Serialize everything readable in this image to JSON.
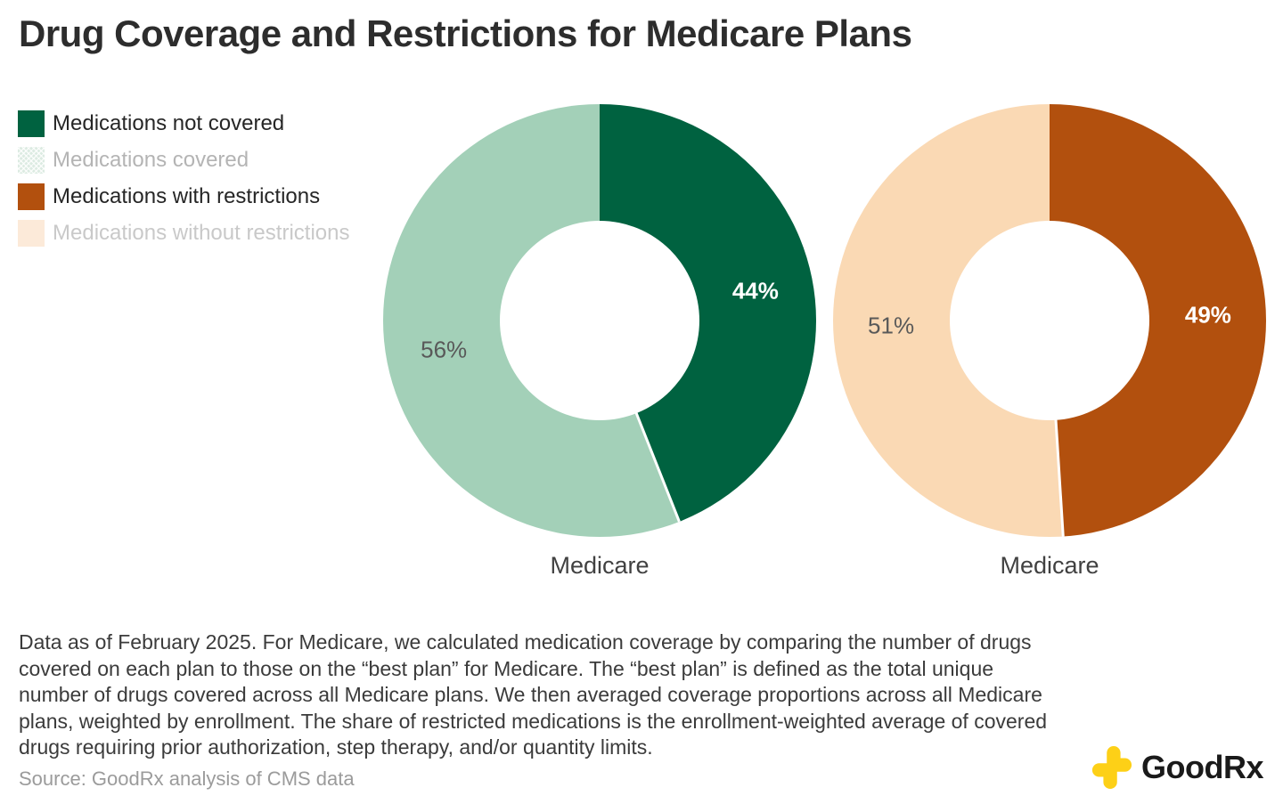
{
  "header": {
    "title": "Drug Coverage and Restrictions for Medicare Plans"
  },
  "legend": {
    "items": [
      {
        "label": "Medications not covered",
        "swatch_color": "#006240",
        "text_color": "#262626",
        "pattern": false
      },
      {
        "label": "Medications covered",
        "swatch_color": "#dcebe2",
        "text_color": "#b4b4b4",
        "pattern": true
      },
      {
        "label": "Medications with restrictions",
        "swatch_color": "#b2500e",
        "text_color": "#262626",
        "pattern": false
      },
      {
        "label": "Medications without restrictions",
        "swatch_color": "#fcead9",
        "text_color": "#c9c9c9",
        "pattern": false
      }
    ]
  },
  "chart_data": [
    {
      "type": "pie",
      "subtype": "donut",
      "category": "Medicare",
      "start_angle_deg": 0,
      "direction": "clockwise",
      "donut_hole_ratio": 0.46,
      "legend_position": "top-left",
      "slices": [
        {
          "label": "Medications not covered",
          "value": 44,
          "display": "44%",
          "color": "#006240",
          "label_color": "#ffffff",
          "label_bold": true
        },
        {
          "label": "Medications covered",
          "value": 56,
          "display": "56%",
          "color": "#a3d0b8",
          "label_color": "#595959",
          "label_bold": false
        }
      ]
    },
    {
      "type": "pie",
      "subtype": "donut",
      "category": "Medicare",
      "start_angle_deg": 0,
      "direction": "clockwise",
      "donut_hole_ratio": 0.46,
      "legend_position": "top-left",
      "slices": [
        {
          "label": "Medications with restrictions",
          "value": 49,
          "display": "49%",
          "color": "#b2500e",
          "label_color": "#ffffff",
          "label_bold": true
        },
        {
          "label": "Medications without restrictions",
          "value": 51,
          "display": "51%",
          "color": "#fad9b4",
          "label_color": "#595959",
          "label_bold": false
        }
      ]
    }
  ],
  "footnote": "Data as of February 2025. For Medicare, we calculated medication coverage by comparing the number of drugs covered on each plan to those on the “best plan” for Medicare. The “best plan” is defined as the total unique number of drugs covered across all Medicare plans. We then averaged coverage proportions across all Medicare plans, weighted by enrollment. The share of restricted medications is the enrollment-weighted average of covered drugs requiring prior authorization, step therapy, and/or quantity limits.",
  "source": "Source: GoodRx analysis of CMS data",
  "logo": {
    "text_bold": "Good",
    "text_regular": "Rx",
    "color": "#fdd017"
  }
}
